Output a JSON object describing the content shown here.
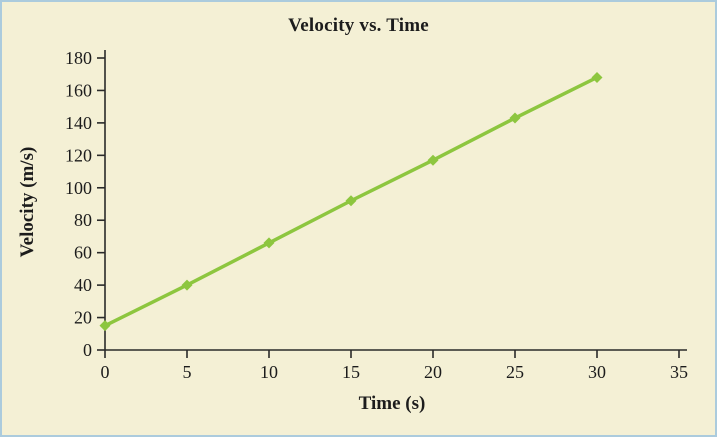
{
  "chart_data": {
    "type": "line",
    "title": "Velocity vs. Time",
    "xlabel": "Time (s)",
    "ylabel": "Velocity (m/s)",
    "x": [
      0,
      5,
      10,
      15,
      20,
      25,
      30
    ],
    "series": [
      {
        "name": "velocity",
        "values": [
          15,
          40,
          66,
          92,
          117,
          143,
          168
        ]
      }
    ],
    "xlim": [
      0,
      35
    ],
    "ylim": [
      0,
      180
    ],
    "xticks": [
      0,
      5,
      10,
      15,
      20,
      25,
      30,
      35
    ],
    "yticks": [
      0,
      20,
      40,
      60,
      80,
      100,
      120,
      140,
      160,
      180
    ],
    "grid": false,
    "legend": "none",
    "marker": "diamond",
    "line_color": "#8dc63f",
    "axis_color": "#2a2a2a",
    "text_color": "#1c1c1c",
    "background": "#f4f0d5",
    "border_color": "#abcbdd"
  }
}
